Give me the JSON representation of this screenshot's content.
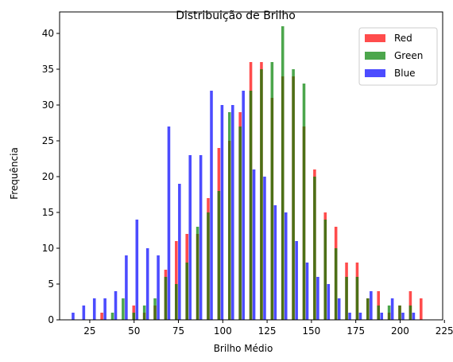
{
  "chart_data": {
    "type": "bar",
    "title": "Distribuição de Brilho",
    "xlabel": "Brilho Médio",
    "ylabel": "Frequência",
    "xlim": [
      8,
      224
    ],
    "ylim": [
      0,
      43
    ],
    "xticks": [
      25,
      50,
      75,
      100,
      125,
      150,
      175,
      200,
      225
    ],
    "yticks": [
      0,
      5,
      10,
      15,
      20,
      25,
      30,
      35,
      40
    ],
    "legend_position": "top-right",
    "bin_width": 6,
    "series": [
      {
        "name": "Red",
        "color": "#ff0000",
        "x": [
          31.8,
          49.8,
          55.8,
          61.8,
          67.8,
          73.8,
          79.8,
          85.8,
          91.8,
          97.8,
          103.8,
          109.8,
          115.8,
          121.8,
          127.8,
          133.8,
          139.8,
          145.8,
          151.8,
          157.8,
          163.8,
          169.8,
          175.8,
          181.8,
          187.8,
          193.8,
          199.8,
          205.8,
          211.8
        ],
        "values": [
          1,
          2,
          1,
          2,
          7,
          11,
          12,
          12,
          17,
          24,
          25,
          29,
          36,
          36,
          31,
          34,
          34,
          27,
          21,
          15,
          13,
          8,
          8,
          3,
          4,
          1,
          2,
          4,
          3
        ]
      },
      {
        "name": "Green",
        "color": "#008000",
        "x": [
          37.8,
          43.8,
          49.8,
          55.8,
          61.8,
          67.8,
          73.8,
          79.8,
          85.8,
          91.8,
          97.8,
          103.8,
          109.8,
          115.8,
          121.8,
          127.8,
          133.8,
          139.8,
          145.8,
          151.8,
          157.8,
          163.8,
          169.8,
          175.8,
          181.8,
          187.8,
          193.8,
          199.8,
          205.8
        ],
        "values": [
          1,
          3,
          1,
          2,
          3,
          6,
          5,
          8,
          13,
          15,
          18,
          29,
          27,
          32,
          35,
          36,
          41,
          35,
          33,
          20,
          14,
          10,
          6,
          6,
          3,
          2,
          2,
          2,
          2
        ]
      },
      {
        "name": "Blue",
        "color": "#0000ff",
        "x": [
          15.6,
          21.6,
          27.6,
          33.6,
          39.6,
          45.6,
          51.6,
          57.6,
          63.6,
          69.6,
          75.6,
          81.6,
          87.6,
          93.6,
          99.6,
          105.6,
          111.6,
          117.6,
          123.6,
          129.6,
          135.6,
          141.6,
          147.6,
          153.6,
          159.6,
          165.6,
          171.6,
          177.6,
          183.6,
          189.6,
          195.6,
          201.6,
          207.6
        ],
        "values": [
          1,
          2,
          3,
          3,
          4,
          9,
          14,
          10,
          9,
          27,
          19,
          23,
          23,
          32,
          30,
          30,
          32,
          21,
          20,
          16,
          15,
          11,
          8,
          6,
          5,
          3,
          1,
          1,
          4,
          1,
          3,
          1,
          1
        ]
      }
    ]
  }
}
